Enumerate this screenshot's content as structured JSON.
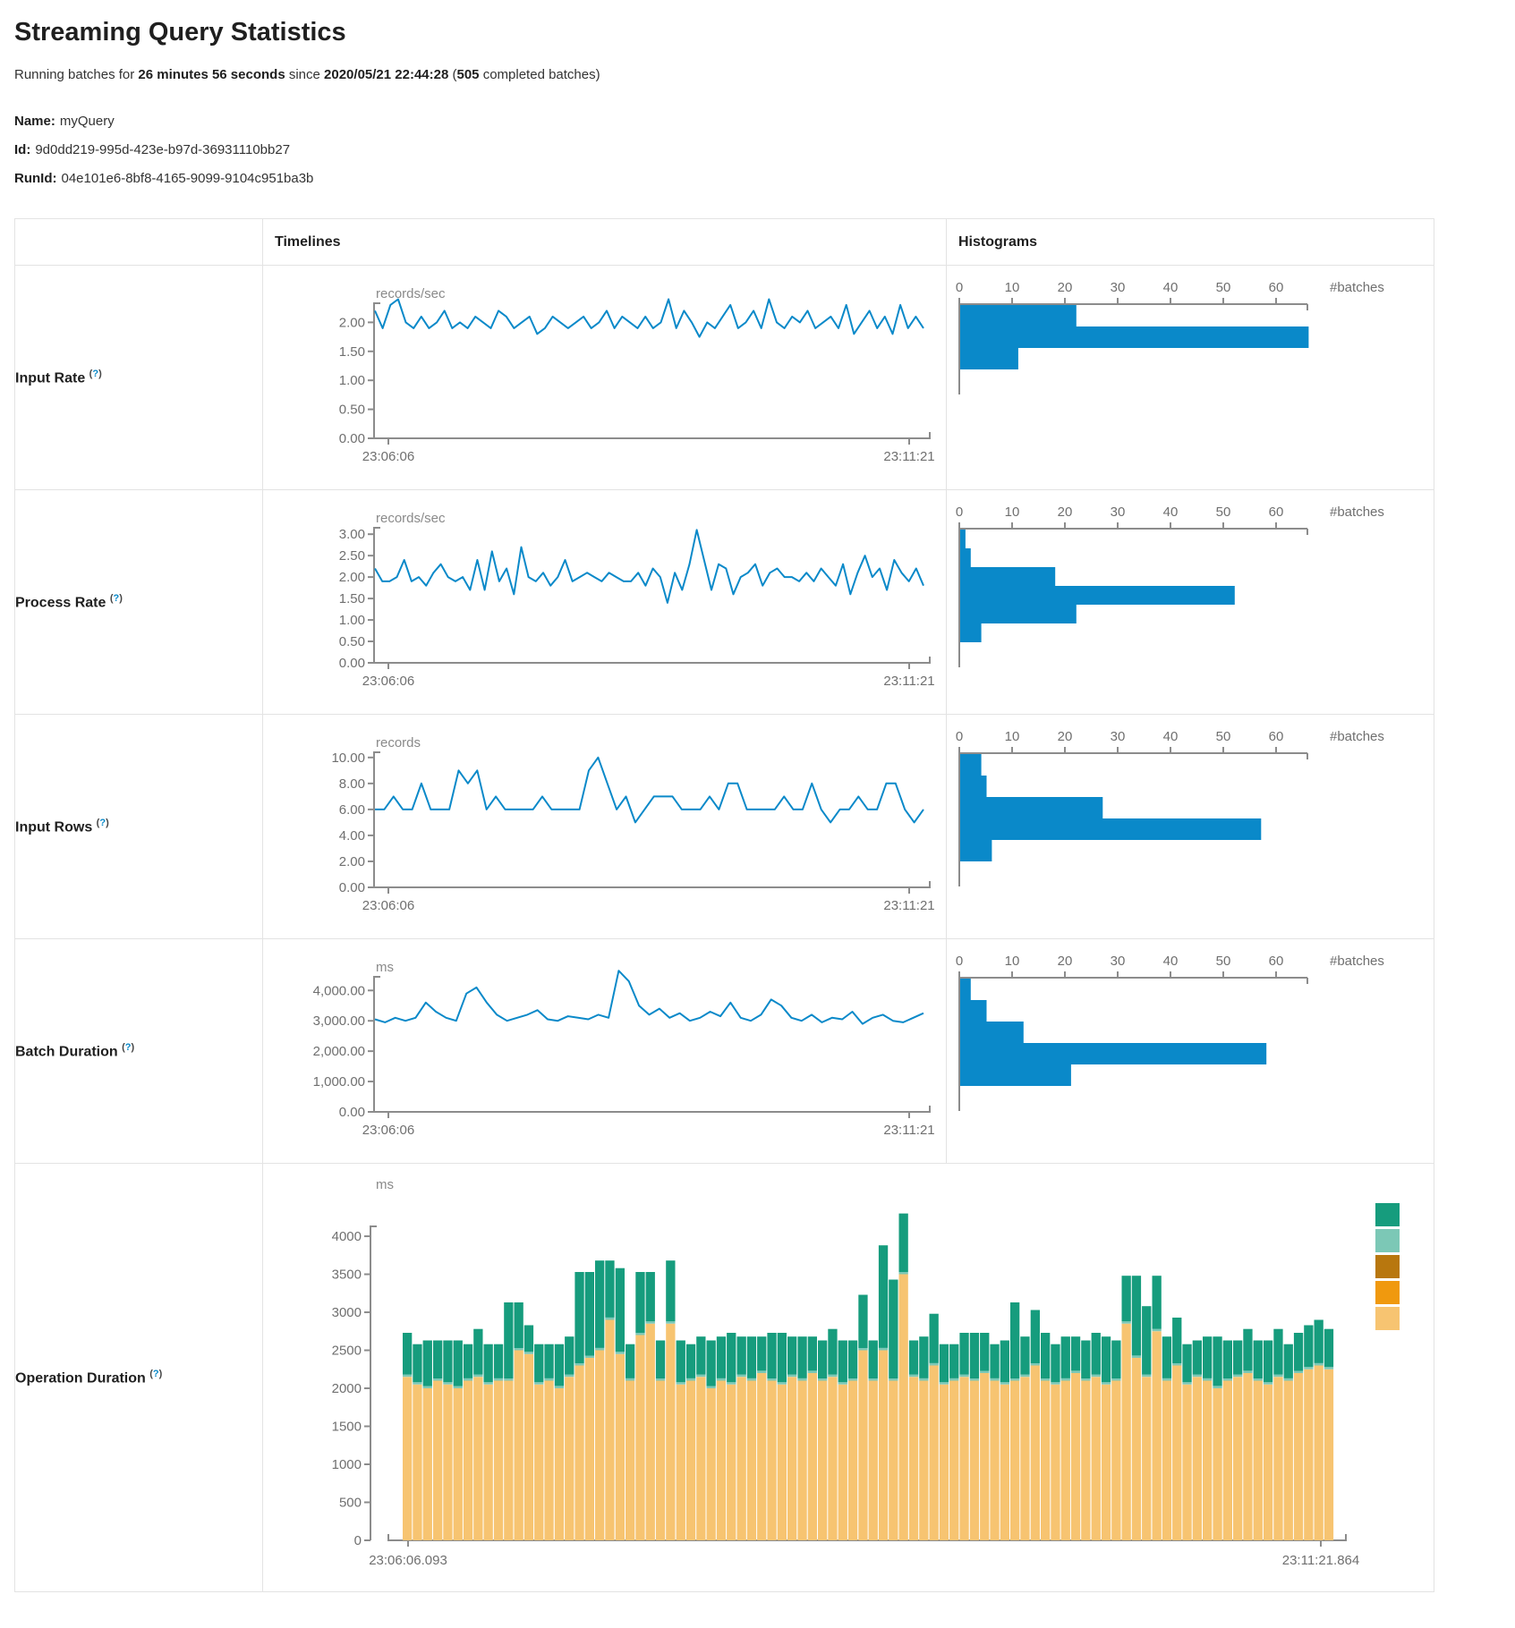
{
  "page": {
    "title": "Streaming Query Statistics",
    "subtitle": {
      "t1": "Running batches for ",
      "duration": "26 minutes 56 seconds",
      "t2": " since ",
      "start_time": "2020/05/21 22:44:28",
      "t3": " (",
      "completed_batches": "505",
      "t4": " completed batches)"
    },
    "meta": {
      "name_label": "Name:",
      "name_value": "myQuery",
      "id_label": "Id:",
      "id_value": "9d0dd219-995d-423e-b97d-36931110bb27",
      "runid_label": "RunId:",
      "runid_value": "04e101e6-8bf8-4165-9099-9104c951ba3b"
    }
  },
  "table": {
    "col_timelines": "Timelines",
    "col_histograms": "Histograms",
    "help_open": "(",
    "help_q": "?",
    "help_close": ")",
    "row_labels": [
      "Input Rate",
      "Process Rate",
      "Input Rows",
      "Batch Duration",
      "Operation Duration"
    ]
  },
  "colors": {
    "data_blue": "#0a89c9",
    "axis_gray": "#8c8c8c",
    "legend": [
      "#169c7d",
      "#7cc8b6",
      "#b8770e",
      "#f0990e",
      "#f7c471"
    ]
  },
  "chart_data": [
    {
      "id": "input-rate-timeline",
      "type": "line",
      "unit": "records/sec",
      "x_start_label": "23:06:06",
      "x_end_label": "23:11:21",
      "y_ticks": [
        0,
        0.5,
        1,
        1.5,
        2
      ],
      "y_tick_labels": [
        "0.00",
        "0.50",
        "1.00",
        "1.50",
        "2.00"
      ],
      "ylim": [
        0,
        2.33
      ],
      "values": [
        2.2,
        1.9,
        2.3,
        2.4,
        2.0,
        1.9,
        2.1,
        1.9,
        2.0,
        2.2,
        1.9,
        2.0,
        1.9,
        2.1,
        2.0,
        1.9,
        2.2,
        2.1,
        1.9,
        2.0,
        2.1,
        1.8,
        1.9,
        2.1,
        2.0,
        1.9,
        2.0,
        2.1,
        1.9,
        2.0,
        2.2,
        1.9,
        2.1,
        2.0,
        1.9,
        2.1,
        1.9,
        2.0,
        2.4,
        1.9,
        2.2,
        2.0,
        1.75,
        2.0,
        1.9,
        2.1,
        2.3,
        1.9,
        2.0,
        2.2,
        1.9,
        2.4,
        2.0,
        1.9,
        2.1,
        2.0,
        2.2,
        1.9,
        2.0,
        2.1,
        1.9,
        2.3,
        1.8,
        2.0,
        2.2,
        1.9,
        2.1,
        1.8,
        2.3,
        1.9,
        2.1,
        1.9
      ]
    },
    {
      "id": "input-rate-histogram",
      "type": "bar",
      "orientation": "horizontal",
      "xlabel": "#batches",
      "x_ticks": [
        0,
        10,
        20,
        30,
        40,
        50,
        60
      ],
      "xlim": [
        0,
        66
      ],
      "values": [
        22,
        66,
        11
      ]
    },
    {
      "id": "process-rate-timeline",
      "type": "line",
      "unit": "records/sec",
      "x_start_label": "23:06:06",
      "x_end_label": "23:11:21",
      "y_ticks": [
        0,
        0.5,
        1,
        1.5,
        2,
        2.5,
        3
      ],
      "y_tick_labels": [
        "0.00",
        "0.50",
        "1.00",
        "1.50",
        "2.00",
        "2.50",
        "3.00"
      ],
      "ylim": [
        0,
        3.15
      ],
      "values": [
        2.2,
        1.9,
        1.9,
        2.0,
        2.4,
        1.9,
        2.0,
        1.8,
        2.1,
        2.3,
        2.0,
        1.9,
        2.0,
        1.7,
        2.4,
        1.7,
        2.6,
        1.9,
        2.2,
        1.6,
        2.7,
        2.0,
        1.9,
        2.1,
        1.8,
        2.0,
        2.4,
        1.9,
        2.0,
        2.1,
        2.0,
        1.9,
        2.1,
        2.0,
        1.9,
        1.9,
        2.1,
        1.8,
        2.2,
        2.0,
        1.4,
        2.1,
        1.7,
        2.3,
        3.1,
        2.4,
        1.7,
        2.3,
        2.2,
        1.6,
        2.0,
        2.1,
        2.3,
        1.8,
        2.1,
        2.2,
        2.0,
        2.0,
        1.9,
        2.1,
        1.9,
        2.2,
        2.0,
        1.8,
        2.3,
        1.6,
        2.1,
        2.5,
        2.0,
        2.2,
        1.7,
        2.4,
        2.1,
        1.9,
        2.2,
        1.8
      ]
    },
    {
      "id": "process-rate-histogram",
      "type": "bar",
      "orientation": "horizontal",
      "xlabel": "#batches",
      "x_ticks": [
        0,
        10,
        20,
        30,
        40,
        50,
        60
      ],
      "xlim": [
        0,
        66
      ],
      "values": [
        1,
        2,
        18,
        52,
        22,
        4
      ]
    },
    {
      "id": "input-rows-timeline",
      "type": "line",
      "unit": "records",
      "x_start_label": "23:06:06",
      "x_end_label": "23:11:21",
      "y_ticks": [
        0,
        2,
        4,
        6,
        8,
        10
      ],
      "y_tick_labels": [
        "0.00",
        "2.00",
        "4.00",
        "6.00",
        "8.00",
        "10.00"
      ],
      "ylim": [
        0,
        10.4
      ],
      "values": [
        6,
        6,
        7,
        6,
        6,
        8,
        6,
        6,
        6,
        9,
        8,
        9,
        6,
        7,
        6,
        6,
        6,
        6,
        7,
        6,
        6,
        6,
        6,
        9,
        10,
        8,
        6,
        7,
        5,
        6,
        7,
        7,
        7,
        6,
        6,
        6,
        7,
        6,
        8,
        8,
        6,
        6,
        6,
        6,
        7,
        6,
        6,
        8,
        6,
        5,
        6,
        6,
        7,
        6,
        6,
        8,
        8,
        6,
        5,
        6
      ]
    },
    {
      "id": "input-rows-histogram",
      "type": "bar",
      "orientation": "horizontal",
      "xlabel": "#batches",
      "x_ticks": [
        0,
        10,
        20,
        30,
        40,
        50,
        60
      ],
      "xlim": [
        0,
        66
      ],
      "values": [
        4,
        5,
        27,
        57,
        6
      ]
    },
    {
      "id": "batch-duration-timeline",
      "type": "line",
      "unit": "ms",
      "x_start_label": "23:06:06",
      "x_end_label": "23:11:21",
      "y_ticks": [
        0,
        1000,
        2000,
        3000,
        4000
      ],
      "y_tick_labels": [
        "0.00",
        "1,000.00",
        "2,000.00",
        "3,000.00",
        "4,000.00"
      ],
      "ylim": [
        0,
        4450
      ],
      "values": [
        3050,
        2950,
        3100,
        3000,
        3100,
        3600,
        3300,
        3100,
        3000,
        3900,
        4100,
        3600,
        3200,
        3000,
        3100,
        3200,
        3350,
        3050,
        3000,
        3150,
        3100,
        3050,
        3200,
        3100,
        4650,
        4300,
        3500,
        3200,
        3400,
        3100,
        3250,
        3000,
        3100,
        3300,
        3150,
        3600,
        3100,
        3000,
        3200,
        3700,
        3500,
        3100,
        3000,
        3200,
        2950,
        3100,
        3050,
        3300,
        2900,
        3100,
        3200,
        3000,
        2950,
        3100,
        3250
      ]
    },
    {
      "id": "batch-duration-histogram",
      "type": "bar",
      "orientation": "horizontal",
      "xlabel": "#batches",
      "x_ticks": [
        0,
        10,
        20,
        30,
        40,
        50,
        60
      ],
      "xlim": [
        0,
        66
      ],
      "values": [
        2,
        5,
        12,
        58,
        21
      ]
    },
    {
      "id": "operation-duration-stacked",
      "type": "stacked-bar",
      "unit": "ms",
      "x_start_label": "23:06:06.093",
      "x_end_label": "23:11:21.864",
      "y_ticks": [
        0,
        500,
        1000,
        1500,
        2000,
        2500,
        3000,
        3500,
        4000
      ],
      "y_tick_labels": [
        "0",
        "500",
        "1000",
        "1500",
        "2000",
        "2500",
        "3000",
        "3500",
        "4000"
      ],
      "ylim": [
        0,
        4130
      ],
      "legend_colors": [
        "#169c7d",
        "#7cc8b6",
        "#b8770e",
        "#f0990e",
        "#f7c471"
      ],
      "series": [
        {
          "name": "segment-bottom",
          "color": "#f7c471",
          "values": [
            2150,
            2050,
            2000,
            2100,
            2050,
            2000,
            2100,
            2150,
            2050,
            2100,
            2100,
            2500,
            2450,
            2050,
            2100,
            2000,
            2150,
            2300,
            2400,
            2500,
            2900,
            2450,
            2100,
            2700,
            2850,
            2100,
            2850,
            2050,
            2100,
            2150,
            2000,
            2100,
            2050,
            2150,
            2100,
            2200,
            2100,
            2050,
            2150,
            2100,
            2200,
            2100,
            2150,
            2050,
            2100,
            2500,
            2100,
            2500,
            2100,
            3500,
            2150,
            2100,
            2300,
            2050,
            2100,
            2150,
            2100,
            2200,
            2100,
            2050,
            2100,
            2150,
            2300,
            2100,
            2050,
            2100,
            2200,
            2100,
            2150,
            2050,
            2100,
            2850,
            2400,
            2150,
            2750,
            2100,
            2300,
            2050,
            2150,
            2100,
            2000,
            2100,
            2150,
            2200,
            2100,
            2050,
            2150,
            2100,
            2200,
            2250,
            2300,
            2250
          ]
        },
        {
          "name": "segment-middle",
          "color": "#7cc8b6",
          "constant": 30,
          "count": 92
        },
        {
          "name": "segment-top",
          "color": "#169c7d",
          "values": [
            550,
            500,
            600,
            500,
            550,
            600,
            450,
            600,
            500,
            450,
            1000,
            600,
            350,
            500,
            450,
            550,
            500,
            1200,
            1100,
            1150,
            750,
            1100,
            450,
            800,
            650,
            500,
            800,
            550,
            450,
            500,
            600,
            550,
            650,
            500,
            550,
            450,
            600,
            650,
            500,
            550,
            450,
            500,
            600,
            550,
            500,
            700,
            500,
            1350,
            1300,
            770,
            450,
            550,
            650,
            500,
            450,
            550,
            600,
            500,
            450,
            550,
            1000,
            500,
            700,
            600,
            500,
            550,
            450,
            500,
            550,
            600,
            500,
            600,
            1050,
            900,
            700,
            550,
            600,
            500,
            450,
            550,
            650,
            500,
            450,
            550,
            500,
            550,
            600,
            450,
            500,
            550,
            570,
            500
          ]
        }
      ]
    }
  ]
}
